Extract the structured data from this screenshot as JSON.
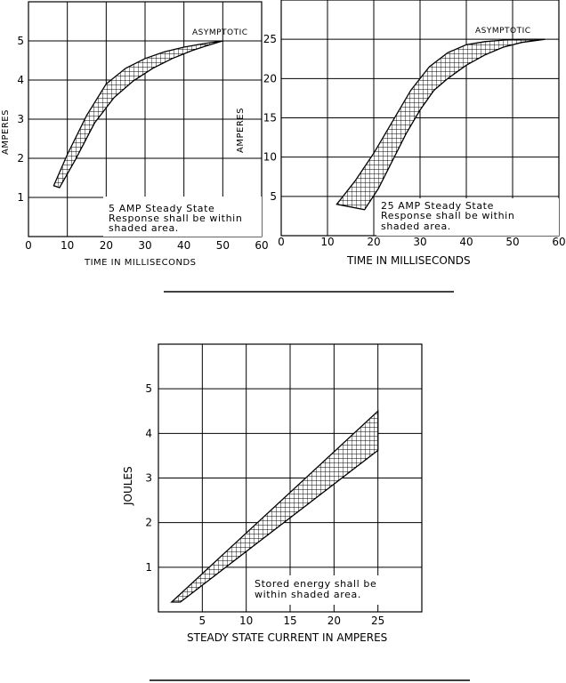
{
  "chart_data": [
    {
      "id": "c1",
      "type": "area",
      "xlabel": "TIME IN MILLISECONDS",
      "ylabel": "AMPERES",
      "xlim": [
        0,
        60
      ],
      "ylim": [
        0,
        6
      ],
      "xticks": [
        0,
        10,
        20,
        30,
        40,
        50,
        60
      ],
      "yticks": [
        1,
        2,
        3,
        4,
        5
      ],
      "grid": true,
      "annotations": {
        "asymptote_label": "ASYMPTOTIC",
        "note_lines": [
          "5 AMP Steady State",
          "Response shall be within",
          "shaded area."
        ]
      },
      "series": [
        {
          "upper": {
            "x": [
              6.5,
              10,
              15,
              20,
              25,
              30,
              35,
              40,
              45,
              50
            ],
            "y": [
              1.3,
              2.1,
              3.1,
              3.9,
              4.3,
              4.55,
              4.72,
              4.84,
              4.93,
              5.0
            ]
          },
          "lower": {
            "x": [
              8,
              12,
              17,
              22,
              27,
              32,
              37,
              42,
              46,
              50
            ],
            "y": [
              1.25,
              1.95,
              2.9,
              3.55,
              3.98,
              4.3,
              4.55,
              4.75,
              4.88,
              5.0
            ]
          }
        }
      ]
    },
    {
      "id": "c2",
      "type": "area",
      "xlabel": "TIME IN MILLISECONDS",
      "ylabel": "AMPERES",
      "xlim": [
        0,
        60
      ],
      "ylim": [
        0,
        30
      ],
      "xticks": [
        0,
        10,
        20,
        30,
        40,
        50,
        60
      ],
      "yticks": [
        5,
        10,
        15,
        20,
        25
      ],
      "grid": true,
      "annotations": {
        "asymptote_label": "ASYMPTOTIC",
        "note_lines": [
          "25 AMP Steady State",
          "Response shall be within",
          "shaded area."
        ]
      },
      "series": [
        {
          "upper": {
            "x": [
              12,
              16,
              20,
              24,
              28,
              32,
              36,
              40,
              44,
              48,
              52,
              57
            ],
            "y": [
              4.0,
              7.0,
              10.5,
              14.5,
              18.5,
              21.5,
              23.3,
              24.3,
              24.7,
              24.9,
              25.0,
              25.0
            ]
          },
          "lower": {
            "x": [
              18,
              21,
              24,
              27,
              30,
              33,
              36,
              40,
              44,
              48,
              52,
              57
            ],
            "y": [
              3.3,
              6.0,
              9.5,
              13.0,
              16.0,
              18.5,
              20.0,
              21.7,
              23.0,
              24.0,
              24.6,
              25.0
            ]
          }
        }
      ]
    },
    {
      "id": "c3",
      "type": "area",
      "xlabel": "STEADY STATE CURRENT IN AMPERES",
      "ylabel": "JOULES",
      "xlim": [
        0,
        30
      ],
      "ylim": [
        0,
        6
      ],
      "xticks": [
        5,
        10,
        15,
        20,
        25
      ],
      "yticks": [
        1,
        2,
        3,
        4,
        5
      ],
      "grid": true,
      "annotations": {
        "note_lines": [
          "Stored energy shall be",
          "within shaded area."
        ]
      },
      "series": [
        {
          "upper": {
            "x": [
              1.5,
              25
            ],
            "y": [
              0.22,
              4.5
            ]
          },
          "lower": {
            "x": [
              2.5,
              25
            ],
            "y": [
              0.22,
              3.62
            ]
          }
        }
      ]
    }
  ]
}
